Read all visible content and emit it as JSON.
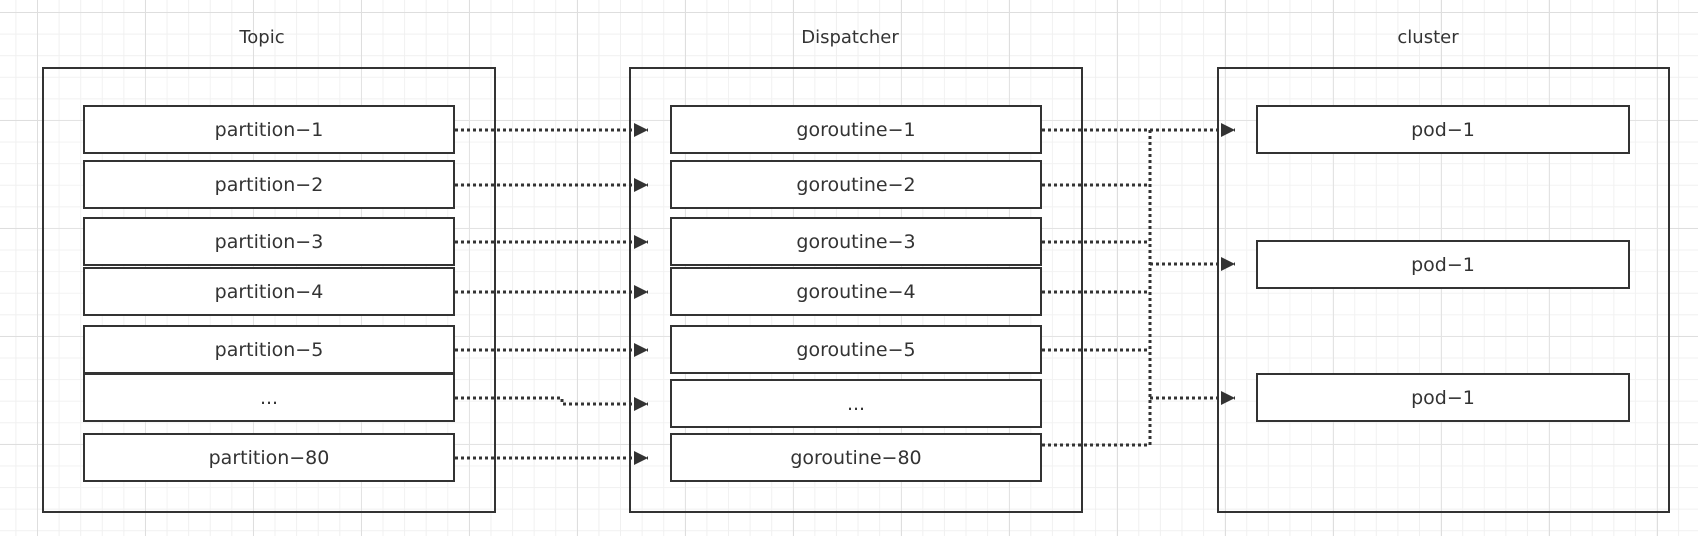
{
  "titles": {
    "topic": "Topic",
    "dispatcher": "Dispatcher",
    "cluster": "cluster"
  },
  "partitions": [
    "partition−1",
    "partition−2",
    "partition−3",
    "partition−4",
    "partition−5",
    "...",
    "partition−80"
  ],
  "goroutines": [
    "goroutine−1",
    "goroutine−2",
    "goroutine−3",
    "goroutine−4",
    "goroutine−5",
    "...",
    "goroutine−80"
  ],
  "pods": [
    "pod−1",
    "pod−1",
    "pod−1"
  ],
  "colors": {
    "stroke": "#333333",
    "grid_major": "#dedede",
    "grid_minor": "#f0f0f0"
  }
}
